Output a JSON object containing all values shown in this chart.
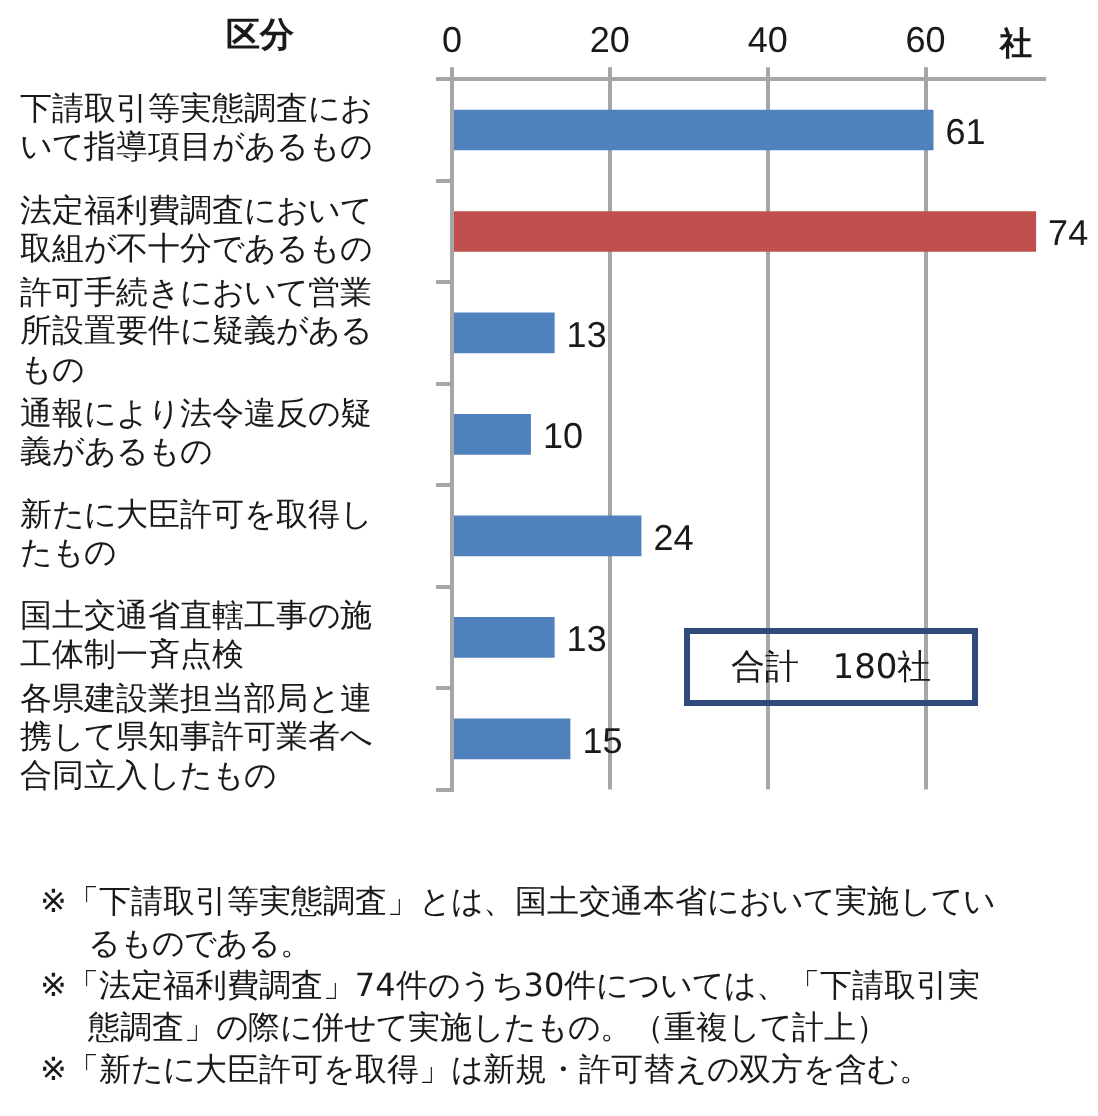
{
  "chart_data": {
    "type": "bar",
    "orientation": "horizontal",
    "ylabel": "区分",
    "xlabel": "社",
    "categories": [
      "下請取引等実態調査において指導項目があるもの",
      "法定福利費調査において取組が不十分であるもの",
      "許可手続きにおいて営業所設置要件に疑義があるもの",
      "通報により法令違反の疑義があるもの",
      "新たに大臣許可を取得したもの",
      "国土交通省直轄工事の施工体制一斉点検",
      "各県建設業担当部局と連携して県知事許可業者へ合同立入したもの"
    ],
    "values": [
      61,
      74,
      13,
      10,
      24,
      13,
      15
    ],
    "colors": [
      "#4f81bd",
      "#c0504d",
      "#4f81bd",
      "#4f81bd",
      "#4f81bd",
      "#4f81bd",
      "#4f81bd"
    ],
    "xlim": [
      0,
      75
    ],
    "xticks": [
      0,
      20,
      40,
      60
    ],
    "grid": "x",
    "data_labels": true,
    "annotations": [
      "合計　180社",
      "※「下請取引等実態調査」とは、国土交通本省において実施しているものである。",
      "※「法定福利費調査」74件のうち30件については、「下請取引実態調査」の際に併せて実施したもの。（重複して計上）",
      "※「新たに大臣許可を取得」は新規・許可替えの双方を含む。"
    ]
  }
}
